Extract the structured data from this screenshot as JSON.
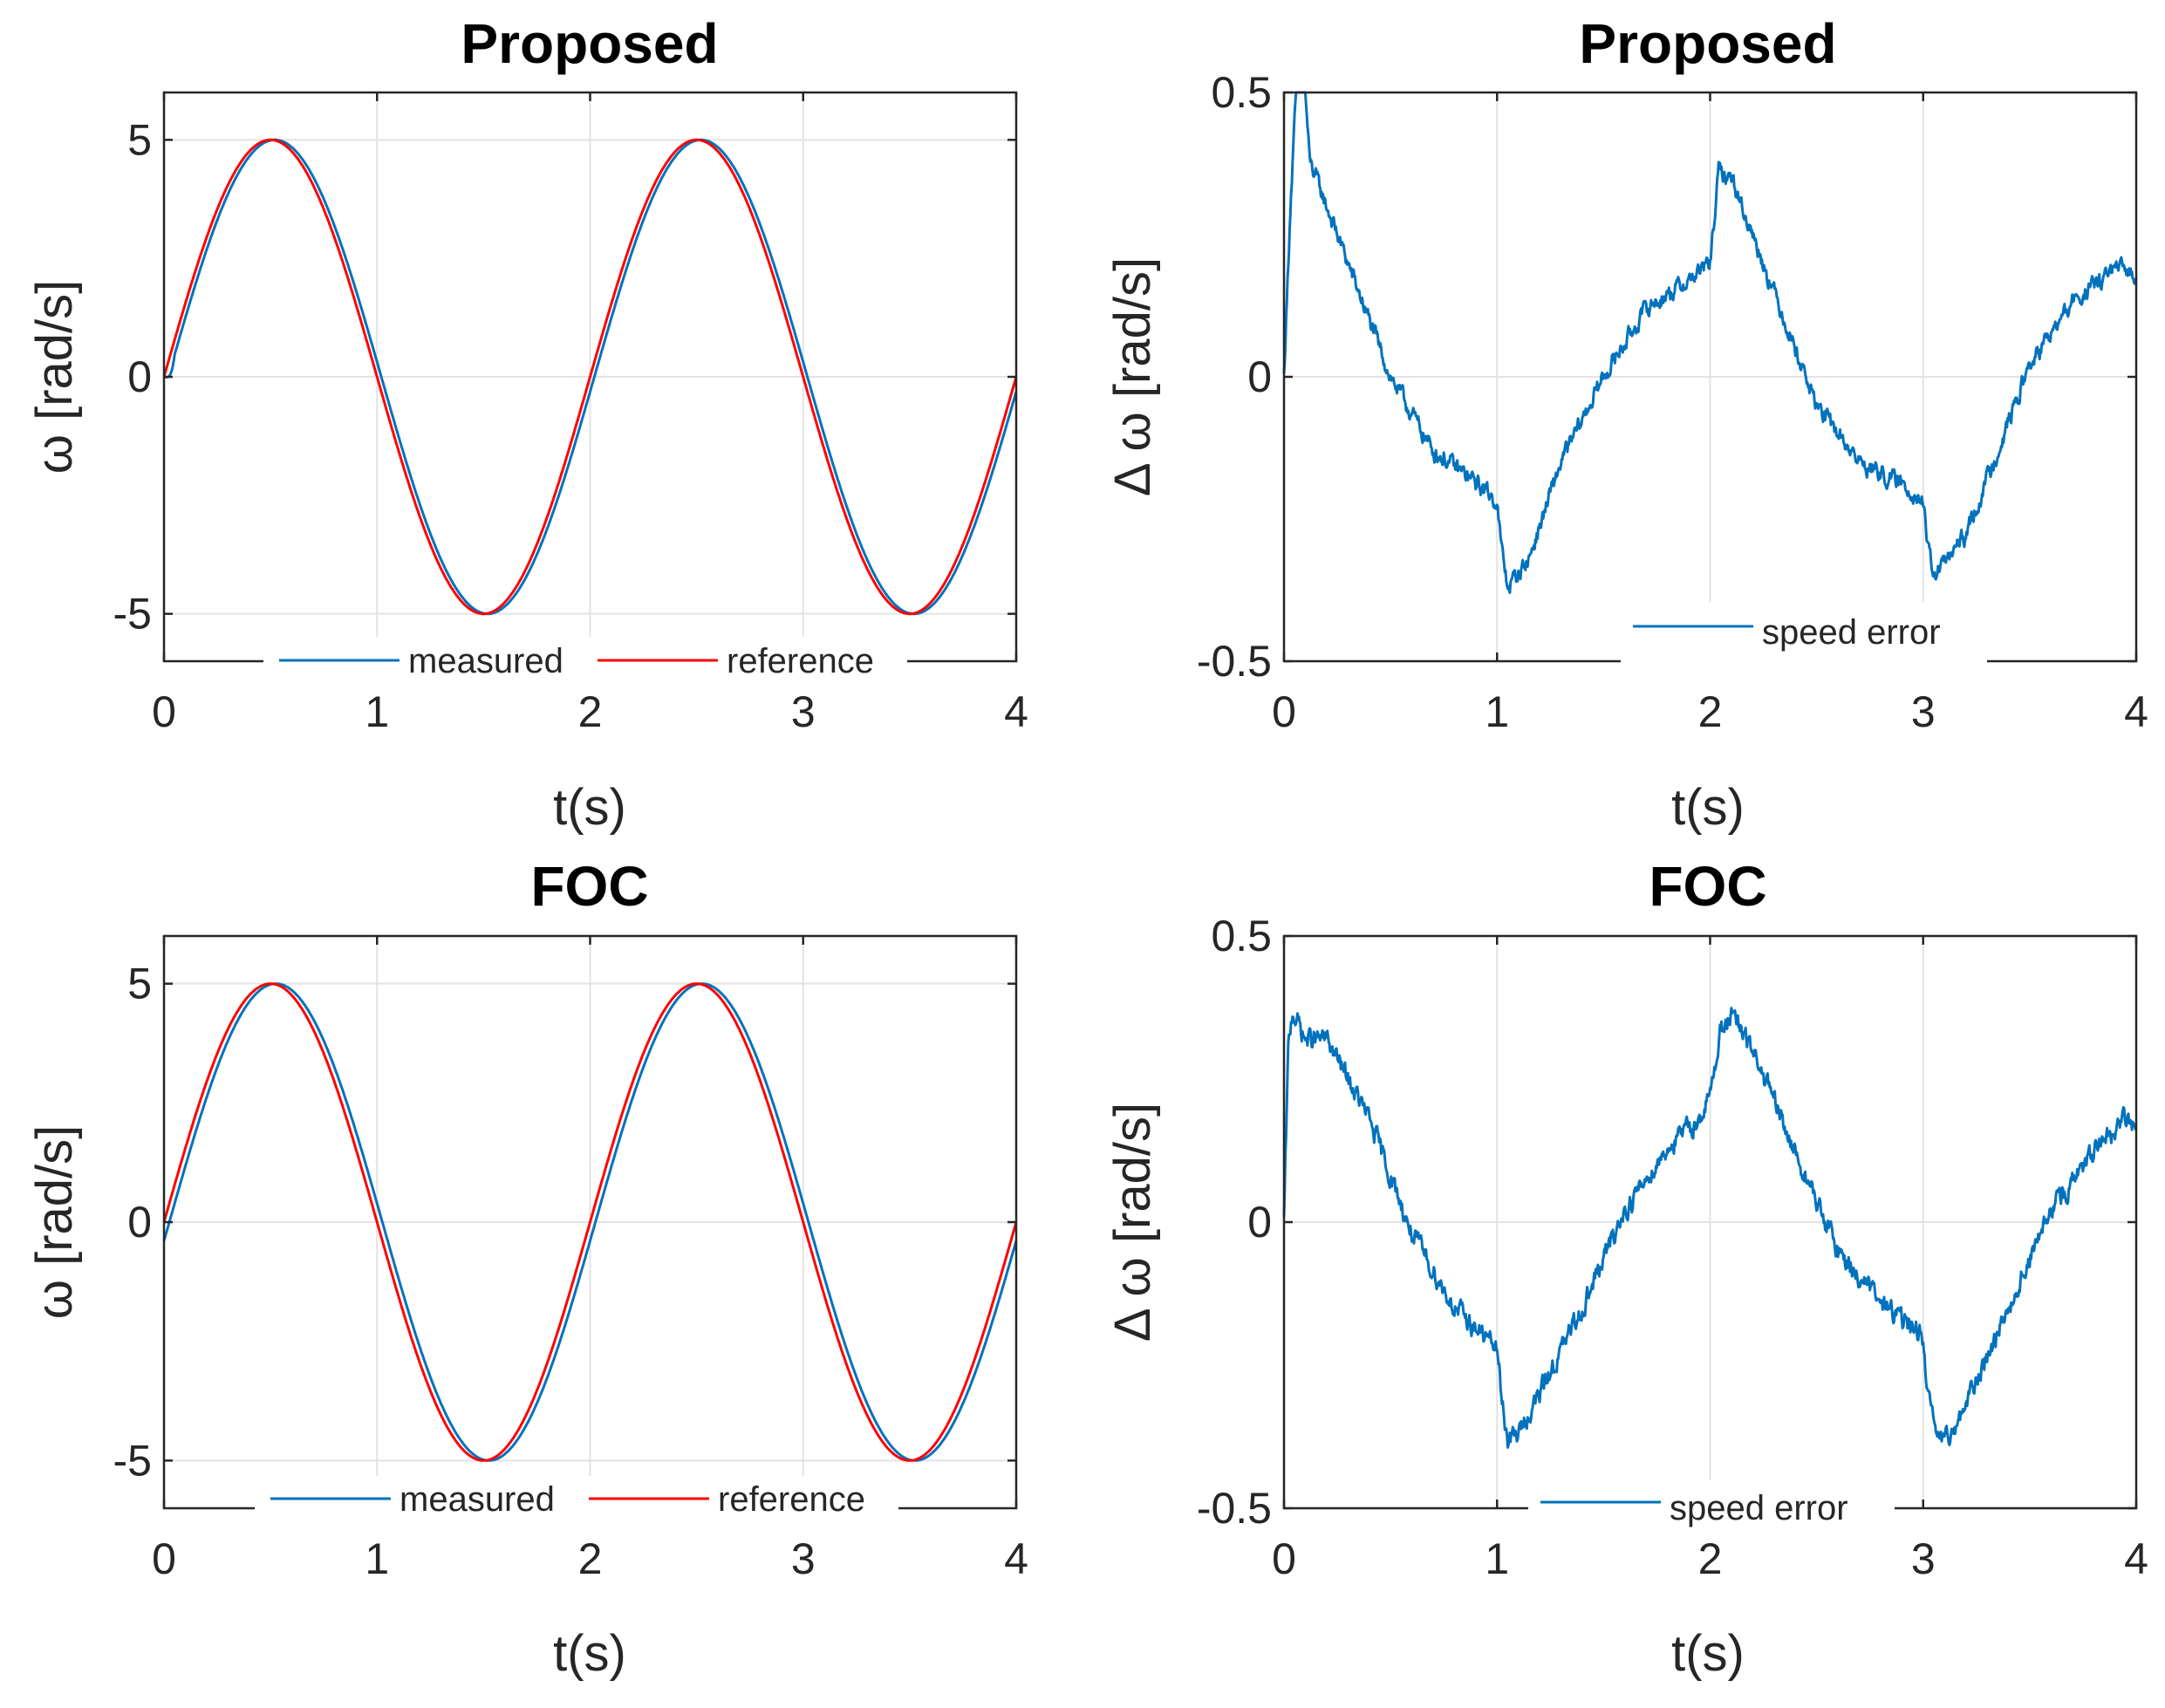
{
  "chart_data": [
    {
      "type": "line",
      "title": "Proposed",
      "xlabel": "t(s)",
      "ylabel": "ω [rad/s]",
      "xlim": [
        0,
        4
      ],
      "ylim": [
        -6,
        6
      ],
      "xticks": [
        0,
        1,
        2,
        3,
        4
      ],
      "xtick_labels": [
        "0",
        "1",
        "2",
        "3",
        "4"
      ],
      "yticks": [
        -5,
        0,
        5
      ],
      "ytick_labels": [
        "-5",
        "0",
        "5"
      ],
      "grid": true,
      "legend_position": "bottom",
      "colors": {
        "measured": "#0072bd",
        "reference": "#ff0000"
      },
      "series": [
        {
          "name": "measured",
          "expr": "5*sin(pi*(t-0.02))",
          "start_delay": 0.05,
          "noise": 0
        },
        {
          "name": "reference",
          "expr": "5*sin(pi*t)",
          "noise": 0
        }
      ]
    },
    {
      "type": "line",
      "title": "Proposed",
      "xlabel": "t(s)",
      "ylabel": "Δ ω [rad/s]",
      "xlim": [
        0,
        4
      ],
      "ylim": [
        -0.5,
        0.5
      ],
      "xticks": [
        0,
        1,
        2,
        3,
        4
      ],
      "xtick_labels": [
        "0",
        "1",
        "2",
        "3",
        "4"
      ],
      "yticks": [
        -0.5,
        0,
        0.5
      ],
      "ytick_labels": [
        "-0.5",
        "0",
        "0.5"
      ],
      "grid": true,
      "legend_position": "bottom-right",
      "colors": {
        "speed error": "#0072bd"
      },
      "series": [
        {
          "name": "speed error",
          "noise": 0.012,
          "keypoints": [
            [
              0,
              0
            ],
            [
              0.03,
              0.3
            ],
            [
              0.06,
              0.52
            ],
            [
              0.1,
              0.5
            ],
            [
              0.12,
              0.38
            ],
            [
              0.3,
              0.2
            ],
            [
              0.5,
              0.0
            ],
            [
              0.7,
              -0.13
            ],
            [
              0.95,
              -0.2
            ],
            [
              1.0,
              -0.22
            ],
            [
              1.02,
              -0.3
            ],
            [
              1.05,
              -0.37
            ],
            [
              1.15,
              -0.32
            ],
            [
              1.3,
              -0.15
            ],
            [
              1.5,
              0.0
            ],
            [
              1.7,
              0.12
            ],
            [
              1.9,
              0.17
            ],
            [
              2.0,
              0.2
            ],
            [
              2.04,
              0.36
            ],
            [
              2.1,
              0.35
            ],
            [
              2.3,
              0.15
            ],
            [
              2.5,
              -0.05
            ],
            [
              2.7,
              -0.15
            ],
            [
              2.95,
              -0.2
            ],
            [
              3.0,
              -0.22
            ],
            [
              3.02,
              -0.3
            ],
            [
              3.05,
              -0.35
            ],
            [
              3.2,
              -0.28
            ],
            [
              3.5,
              0.02
            ],
            [
              3.7,
              0.13
            ],
            [
              3.9,
              0.19
            ],
            [
              4.0,
              0.18
            ]
          ]
        }
      ]
    },
    {
      "type": "line",
      "title": "FOC",
      "xlabel": "t(s)",
      "ylabel": "ω [rad/s]",
      "xlim": [
        0,
        4
      ],
      "ylim": [
        -6,
        6
      ],
      "xticks": [
        0,
        1,
        2,
        3,
        4
      ],
      "xtick_labels": [
        "0",
        "1",
        "2",
        "3",
        "4"
      ],
      "yticks": [
        -5,
        0,
        5
      ],
      "ytick_labels": [
        "-5",
        "0",
        "5"
      ],
      "grid": true,
      "legend_position": "bottom",
      "colors": {
        "measured": "#0072bd",
        "reference": "#ff0000"
      },
      "series": [
        {
          "name": "measured",
          "expr": "5*sin(pi*(t-0.025))",
          "noise": 0
        },
        {
          "name": "reference",
          "expr": "5*sin(pi*t)",
          "noise": 0
        }
      ]
    },
    {
      "type": "line",
      "title": "FOC",
      "xlabel": "t(s)",
      "ylabel": "Δ ω [rad/s]",
      "xlim": [
        0,
        4
      ],
      "ylim": [
        -0.5,
        0.5
      ],
      "xticks": [
        0,
        1,
        2,
        3,
        4
      ],
      "xtick_labels": [
        "0",
        "1",
        "2",
        "3",
        "4"
      ],
      "yticks": [
        -0.5,
        0,
        0.5
      ],
      "ytick_labels": [
        "-0.5",
        "0",
        "0.5"
      ],
      "grid": true,
      "legend_position": "bottom",
      "colors": {
        "speed error": "#0072bd"
      },
      "series": [
        {
          "name": "speed error",
          "noise": 0.014,
          "keypoints": [
            [
              0,
              0
            ],
            [
              0.02,
              0.3
            ],
            [
              0.04,
              0.37
            ],
            [
              0.1,
              0.32
            ],
            [
              0.2,
              0.32
            ],
            [
              0.4,
              0.18
            ],
            [
              0.6,
              -0.02
            ],
            [
              0.8,
              -0.15
            ],
            [
              1.0,
              -0.22
            ],
            [
              1.02,
              -0.3
            ],
            [
              1.05,
              -0.38
            ],
            [
              1.1,
              -0.37
            ],
            [
              1.2,
              -0.3
            ],
            [
              1.4,
              -0.15
            ],
            [
              1.6,
              0.02
            ],
            [
              1.8,
              0.13
            ],
            [
              1.95,
              0.18
            ],
            [
              2.0,
              0.22
            ],
            [
              2.05,
              0.34
            ],
            [
              2.1,
              0.36
            ],
            [
              2.2,
              0.3
            ],
            [
              2.4,
              0.12
            ],
            [
              2.6,
              -0.05
            ],
            [
              2.8,
              -0.14
            ],
            [
              3.0,
              -0.2
            ],
            [
              3.02,
              -0.3
            ],
            [
              3.05,
              -0.36
            ],
            [
              3.1,
              -0.39
            ],
            [
              3.2,
              -0.32
            ],
            [
              3.4,
              -0.15
            ],
            [
              3.6,
              0.02
            ],
            [
              3.8,
              0.12
            ],
            [
              3.95,
              0.18
            ],
            [
              4.0,
              0.17
            ]
          ]
        }
      ]
    }
  ]
}
